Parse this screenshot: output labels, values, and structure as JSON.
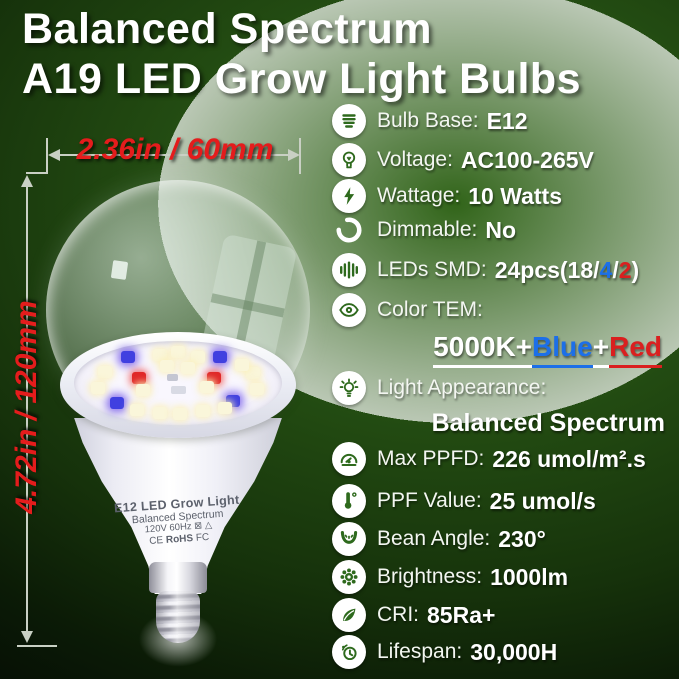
{
  "title": {
    "line1": "Balanced Spectrum",
    "line2": "A19 LED Grow Light Bulbs"
  },
  "dimensions": {
    "width_label": "2.36in / 60mm",
    "height_label": "4.72in / 120mm"
  },
  "bulb_print": {
    "line1": "E12 LED Grow Light",
    "line2": "Balanced Spectrum",
    "line3": "120V 60Hz",
    "line3_marks": "⊠ △",
    "line4_ce": "CE",
    "line4_rohs": "RoHS",
    "line4_fc": "FC"
  },
  "colors": {
    "accent_red": "#da1f1f",
    "accent_blue": "#1c6fe8",
    "text_white": "#ffffff",
    "icon_green": "#2e6a1d",
    "background_green": "#234c12",
    "dim_line": "#c9d0c4",
    "led_warm": "#faf6da",
    "led_blue": "#4040e0",
    "led_red": "#e02828"
  },
  "specs": [
    {
      "icon": "bulb-base-icon",
      "label": "Bulb Base:",
      "value": "E12"
    },
    {
      "icon": "voltage-icon",
      "label": "Voltage:",
      "value": "AC100-265V"
    },
    {
      "icon": "wattage-icon",
      "label": "Wattage:",
      "value": "10 Watts"
    },
    {
      "icon": "dimmable-icon",
      "label": "Dimmable:",
      "value": "No"
    },
    {
      "icon": "leds-smd-icon",
      "label": "LEDs SMD:",
      "value_parts": [
        {
          "text": "24pcs(18/",
          "color": "white"
        },
        {
          "text": "4",
          "color": "blue"
        },
        {
          "text": "/",
          "color": "white"
        },
        {
          "text": "2",
          "color": "red"
        },
        {
          "text": ")",
          "color": "white"
        }
      ]
    },
    {
      "icon": "color-tem-icon",
      "label": "Color TEM:",
      "subvalue_parts": [
        {
          "text": "5000K+",
          "color": "white"
        },
        {
          "text": "Blue",
          "color": "blue"
        },
        {
          "text": "+",
          "color": "white"
        },
        {
          "text": "Red",
          "color": "red"
        }
      ]
    },
    {
      "icon": "light-appearance-icon",
      "label": "Light Appearance:",
      "subvalue": "Balanced Spectrum"
    },
    {
      "icon": "max-ppfd-icon",
      "label": "Max PPFD:",
      "value": "226 umol/m².s"
    },
    {
      "icon": "ppf-value-icon",
      "label": "PPF Value:",
      "value": "25 umol/s"
    },
    {
      "icon": "bean-angle-icon",
      "label": "Bean Angle:",
      "value": "230°"
    },
    {
      "icon": "brightness-icon",
      "label": "Brightness:",
      "value": "1000lm"
    },
    {
      "icon": "cri-icon",
      "label": "CRI:",
      "value": "85Ra+"
    },
    {
      "icon": "lifespan-icon",
      "label": "Lifespan:",
      "value": "30,000H"
    }
  ]
}
